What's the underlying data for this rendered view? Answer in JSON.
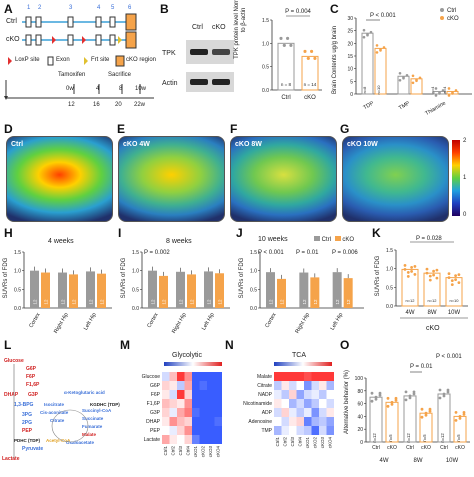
{
  "panel_letters": {
    "A": "A",
    "B": "B",
    "C": "C",
    "D": "D",
    "E": "E",
    "F": "F",
    "G": "G",
    "H": "H",
    "I": "I",
    "J": "J",
    "K": "K",
    "L": "L",
    "M": "M",
    "N": "N",
    "O": "O"
  },
  "panelA": {
    "ctrl": "Ctrl",
    "cko": "cKO",
    "exon_numbers": [
      "1",
      "2",
      "3",
      "4",
      "5",
      "6"
    ],
    "legend": {
      "loxp": "LoxP site",
      "exon": "Exon",
      "frt": "Frt site",
      "cko_region": "cKO region"
    },
    "tamoxifen": "Tamoxifen",
    "sacrifice": "Sacrifice",
    "weeks_top": [
      "0w",
      "4",
      "8",
      "10w"
    ],
    "weeks_bottom": [
      "12",
      "16",
      "20",
      "22w"
    ]
  },
  "panelB": {
    "tpk": "TPK",
    "actin": "Actin",
    "ctrl": "Ctrl",
    "cko": "cKO",
    "ylabel": "TPK protein level Normalized to β-actin",
    "pvalue": "P = 0.004",
    "n_ctrl": "n = 8",
    "n_cko": "n = 14",
    "yticks": [
      "0.0",
      "0.5",
      "1.0",
      "1.5"
    ]
  },
  "panelC": {
    "ylabel": "Brain Contents ug/g brain",
    "legend": [
      "Ctrl",
      "cKO"
    ],
    "pvalue": "P < 0.001",
    "categories": [
      "TDP",
      "TMP",
      "Thiamine"
    ],
    "yticks": [
      "0",
      "5",
      "10",
      "15",
      "20",
      "25",
      "30"
    ],
    "n_labels": [
      "n=8",
      "n=10",
      "n=4",
      "n=4"
    ]
  },
  "panelsDG": {
    "labels": [
      "Ctrl",
      "cKO 4W",
      "cKO 8W",
      "cKO 10W"
    ],
    "colorbar_ticks": [
      "2",
      "1",
      "0"
    ]
  },
  "panelH": {
    "title": "4 weeks",
    "n": "12"
  },
  "panelI": {
    "title": "8 weeks",
    "pvalue": "P = 0.002",
    "n": "12"
  },
  "panelJ": {
    "title": "10 weeks",
    "legend": [
      "Ctrl",
      "cKO"
    ],
    "pvalues": [
      "P < 0.001",
      "P = 0.01",
      "P = 0.006"
    ],
    "n": "12"
  },
  "panelK": {
    "pvalue": "P = 0.028",
    "n_labels": [
      "n=12",
      "n=12",
      "n=10"
    ],
    "group": "cKO",
    "yticks": [
      "0.0",
      "0.5",
      "1.0",
      "1.5"
    ]
  },
  "suvr_common": {
    "ylabel": "SUVRs of FDG",
    "xcats": [
      "Cortex",
      "Right Hip",
      "Left Hip"
    ],
    "yticks": [
      "0.0",
      "0.5",
      "1.0",
      "1.5"
    ]
  },
  "panelL": {
    "metabolites": [
      "Glucose",
      "G6P",
      "F6P",
      "F1,6P",
      "DHAP",
      "G3P",
      "1,3-BPG",
      "3PG",
      "2PG",
      "PEP",
      "Pyruvate",
      "Lactate",
      "Citrate",
      "Cis-aconitate",
      "Isocitrate",
      "α-Ketoglutaric acid",
      "KGDHC (TDP)",
      "Succinyl-CoA",
      "Succinate",
      "Fumarate",
      "Malate",
      "Oxaloacetate",
      "Acetyl-CoA",
      "PDHC (TDP)"
    ]
  },
  "panelM": {
    "title": "Glycolytic",
    "rows": [
      "Glucose",
      "G6P",
      "F6P",
      "F1,6P",
      "G3P",
      "DHAP",
      "PEP",
      "Lactate"
    ],
    "cols": [
      "Ctrl1",
      "Ctrl2",
      "Ctrl3",
      "Ctrl4",
      "cKO1",
      "cKO2",
      "cKO3",
      "cKO4"
    ],
    "scale": [
      "-40",
      "-20",
      "0",
      "20",
      "40"
    ]
  },
  "panelN": {
    "title": "TCA",
    "rows": [
      "Malate",
      "Citrate",
      "NADP",
      "Nicotinamide",
      "ADP",
      "Adenosine",
      "TMP"
    ],
    "cols": [
      "Ctrl1",
      "Ctrl2",
      "Ctrl3",
      "Ctrl4",
      "cKO1",
      "cKO2",
      "cKO3",
      "cKO4"
    ]
  },
  "panelO": {
    "ylabel": "Alternative behavior (%)",
    "pvalues": [
      "P = 0.01",
      "P < 0.001"
    ],
    "xcats": [
      "Ctrl",
      "cKO",
      "Ctrl",
      "cKO",
      "Ctrl",
      "cKO"
    ],
    "weeks": [
      "4W",
      "8W",
      "10W"
    ],
    "n_labels": [
      "n=12",
      "n=5",
      "n=12",
      "n=5",
      "n=12",
      "n=5"
    ],
    "yticks": [
      "0",
      "20",
      "40",
      "60",
      "80",
      "100"
    ]
  },
  "chart_data": [
    {
      "type": "bar",
      "title": "",
      "categories": [
        "Ctrl",
        "cKO"
      ],
      "values": [
        1.0,
        0.72
      ],
      "ylabel": "TPK protein level Normalized to β-actin",
      "ylim": [
        0,
        1.5
      ]
    },
    {
      "type": "bar",
      "categories": [
        "TDP",
        "TMP",
        "Thiamine"
      ],
      "series": [
        {
          "name": "Ctrl",
          "values": [
            24,
            7,
            1
          ]
        },
        {
          "name": "cKO",
          "values": [
            18,
            6,
            1
          ]
        }
      ],
      "ylabel": "Brain Contents ug/g brain",
      "ylim": [
        0,
        30
      ]
    },
    {
      "type": "bar",
      "title": "4 weeks",
      "categories": [
        "Cortex",
        "Right Hip",
        "Left Hip"
      ],
      "series": [
        {
          "name": "Ctrl",
          "values": [
            1.0,
            0.95,
            0.98
          ]
        },
        {
          "name": "cKO",
          "values": [
            0.95,
            0.9,
            0.92
          ]
        }
      ],
      "ylabel": "SUVRs of FDG",
      "ylim": [
        0,
        1.5
      ]
    },
    {
      "type": "bar",
      "title": "8 weeks",
      "categories": [
        "Cortex",
        "Right Hip",
        "Left Hip"
      ],
      "series": [
        {
          "name": "Ctrl",
          "values": [
            1.0,
            0.97,
            0.98
          ]
        },
        {
          "name": "cKO",
          "values": [
            0.86,
            0.9,
            0.93
          ]
        }
      ],
      "ylabel": "SUVRs of FDG",
      "ylim": [
        0,
        1.5
      ]
    },
    {
      "type": "bar",
      "title": "10 weeks",
      "categories": [
        "Cortex",
        "Right Hip",
        "Left Hip"
      ],
      "series": [
        {
          "name": "Ctrl",
          "values": [
            0.96,
            0.95,
            0.96
          ]
        },
        {
          "name": "cKO",
          "values": [
            0.78,
            0.82,
            0.8
          ]
        }
      ],
      "ylabel": "SUVRs of FDG",
      "ylim": [
        0,
        1.5
      ]
    },
    {
      "type": "bar",
      "categories": [
        "4W",
        "8W",
        "10W"
      ],
      "values": [
        0.98,
        0.88,
        0.76
      ],
      "ylabel": "SUVRs of FDG",
      "ylim": [
        0,
        1.5
      ]
    },
    {
      "type": "bar",
      "categories": [
        "4W Ctrl",
        "4W cKO",
        "8W Ctrl",
        "8W cKO",
        "10W Ctrl",
        "10W cKO"
      ],
      "values": [
        70,
        62,
        72,
        45,
        75,
        40
      ],
      "ylabel": "Alternative behavior (%)",
      "ylim": [
        0,
        100
      ]
    }
  ]
}
